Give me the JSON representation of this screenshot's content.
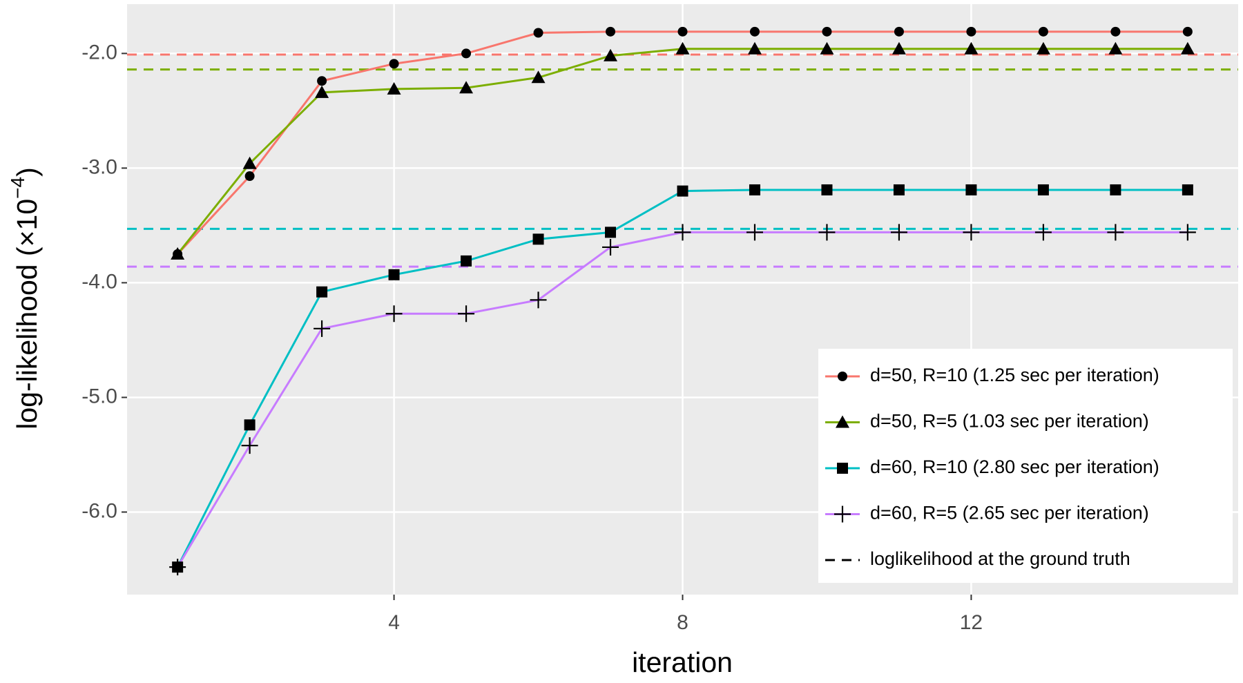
{
  "chart_data": {
    "type": "line",
    "x_label": "iteration",
    "y_label": {
      "text": "log-likelihood (×10",
      "superscript": "−4",
      "suffix": ")"
    },
    "x": [
      1,
      2,
      3,
      4,
      5,
      6,
      7,
      8,
      9,
      10,
      11,
      12,
      13,
      14,
      15
    ],
    "series": [
      {
        "name": "d=50, R=10 (1.25 sec per iteration)",
        "color": "#F8766D",
        "marker": "circle",
        "values": [
          -3.75,
          -3.07,
          -2.24,
          -2.09,
          -2.0,
          -1.82,
          -1.81,
          -1.81,
          -1.81,
          -1.81,
          -1.81,
          -1.81,
          -1.81,
          -1.81,
          -1.81
        ],
        "ground_truth": -2.01
      },
      {
        "name": "d=50, R=5 (1.03 sec per iteration)",
        "color": "#7CAE00",
        "marker": "triangle",
        "values": [
          -3.75,
          -2.96,
          -2.34,
          -2.31,
          -2.3,
          -2.21,
          -2.02,
          -1.96,
          -1.96,
          -1.96,
          -1.96,
          -1.96,
          -1.96,
          -1.96,
          -1.96
        ],
        "ground_truth": -2.14
      },
      {
        "name": "d=60, R=10 (2.80 sec per iteration)",
        "color": "#00BFC4",
        "marker": "square",
        "values": [
          -6.48,
          -5.24,
          -4.08,
          -3.93,
          -3.81,
          -3.62,
          -3.56,
          -3.2,
          -3.19,
          -3.19,
          -3.19,
          -3.19,
          -3.19,
          -3.19,
          -3.19
        ],
        "ground_truth": -3.53
      },
      {
        "name": "d=60, R=5 (2.65 sec per iteration)",
        "color": "#C77CFF",
        "marker": "plus",
        "values": [
          -6.48,
          -5.42,
          -4.4,
          -4.27,
          -4.27,
          -4.15,
          -3.69,
          -3.56,
          -3.56,
          -3.56,
          -3.56,
          -3.56,
          -3.56,
          -3.56,
          -3.56
        ],
        "ground_truth": -3.86
      }
    ],
    "reference_label": "loglikelihood at the ground truth",
    "xlim": [
      0.3,
      15.7
    ],
    "xticks": [
      4,
      8,
      12
    ],
    "ylim": [
      -6.72,
      -1.57
    ],
    "yticks": [
      {
        "value": -6,
        "label": "-6.0"
      },
      {
        "value": -5,
        "label": "-5.0"
      },
      {
        "value": -4,
        "label": "-4.0"
      },
      {
        "value": -3,
        "label": "-3.0"
      },
      {
        "value": -2,
        "label": "-2.0"
      }
    ],
    "grid": true,
    "legend": "bottom-right"
  }
}
